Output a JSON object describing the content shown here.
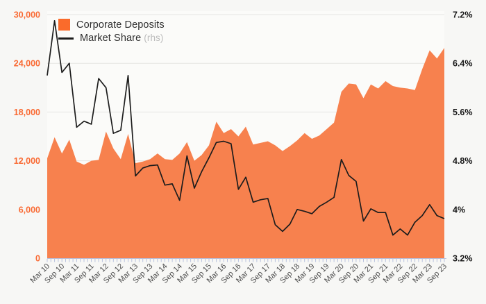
{
  "legend": {
    "items": [
      {
        "label": "Corporate Deposits",
        "marker": "square",
        "color": "#fa6b2b",
        "suffix": ""
      },
      {
        "label": "Market Share",
        "marker": "line",
        "color": "#1c1c1c",
        "suffix": "(rhs)"
      }
    ]
  },
  "chart_data": {
    "type": "area",
    "title": "",
    "subtitle": "",
    "grid": "horizontal",
    "legend_position": "top-left",
    "background": "#f7f7f5",
    "plot_background": "#fbfbf9",
    "gridline_color": "#e6e6e3",
    "axis_line_color": "#b8c1dd",
    "x_label_color": "#4d4d4d",
    "categories": [
      "Mar 10",
      "Jun 10",
      "Sep 10",
      "Dec 10",
      "Mar 11",
      "Jun 11",
      "Sep 11",
      "Dec 11",
      "Mar 12",
      "Jun 12",
      "Sep 12",
      "Dec 12",
      "Mar 13",
      "Jun 13",
      "Sep 13",
      "Dec 13",
      "Mar 14",
      "Jun 14",
      "Sep 14",
      "Dec 14",
      "Mar 15",
      "Jun 15",
      "Sep 15",
      "Dec 15",
      "Mar 16",
      "Jun 16",
      "Sep 16",
      "Dec 16",
      "Mar 17",
      "Jun 17",
      "Sep 17",
      "Dec 17",
      "Mar 18",
      "Jun 18",
      "Sep 18",
      "Dec 18",
      "Mar 19",
      "Jun 19",
      "Sep 19",
      "Dec 19",
      "Mar 20",
      "Jun 20",
      "Sep 20",
      "Dec 20",
      "Mar 21",
      "Jun 21",
      "Sep 21",
      "Dec 21",
      "Mar 22",
      "Jun 22",
      "Sep 22",
      "Dec 22",
      "Mar 23",
      "Jun 23",
      "Sep 23"
    ],
    "series": [
      {
        "name": "Corporate Deposits",
        "type": "area",
        "y_axis": "left",
        "color": "#f7814e",
        "values": [
          12300,
          14900,
          12900,
          14600,
          11900,
          11500,
          12000,
          12100,
          15600,
          13500,
          12200,
          15300,
          11700,
          11900,
          12200,
          12900,
          12200,
          12100,
          12900,
          14300,
          12000,
          12700,
          13900,
          16800,
          15400,
          15900,
          15000,
          16200,
          14000,
          14200,
          14400,
          13900,
          13200,
          13800,
          14500,
          15400,
          14700,
          15100,
          15900,
          16700,
          20500,
          21500,
          21400,
          19700,
          21400,
          20900,
          21800,
          21200,
          21000,
          20900,
          20700,
          23300,
          25600,
          24600,
          25900
        ]
      },
      {
        "name": "Market Share",
        "type": "line",
        "y_axis": "right",
        "color": "#1c1c1c",
        "values": [
          6.2,
          7.1,
          6.25,
          6.4,
          5.35,
          5.45,
          5.4,
          6.15,
          6.0,
          5.25,
          5.3,
          6.2,
          4.55,
          4.68,
          4.72,
          4.73,
          4.4,
          4.42,
          4.15,
          4.88,
          4.35,
          4.62,
          4.85,
          5.1,
          5.12,
          5.08,
          4.33,
          4.53,
          4.12,
          4.16,
          4.18,
          3.75,
          3.64,
          3.76,
          4.0,
          3.97,
          3.93,
          4.05,
          4.12,
          4.2,
          4.82,
          4.56,
          4.46,
          3.81,
          4.01,
          3.95,
          3.95,
          3.58,
          3.68,
          3.58,
          3.79,
          3.9,
          4.08,
          3.9,
          3.85
        ]
      }
    ],
    "left_axis": {
      "min": 0,
      "max": 30000,
      "tick_labels": [
        "0",
        "6,000",
        "12,000",
        "18,000",
        "24,000",
        "30,000"
      ],
      "label_color": "#f96a33"
    },
    "right_axis": {
      "min": 3.2,
      "max": 7.2,
      "tick_labels": [
        "3.2%",
        "4%",
        "4.8%",
        "5.6%",
        "6.4%",
        "7.2%"
      ],
      "label_color": "#1a1a1a"
    },
    "x_axis": {
      "tick_labels": [
        "Mar 10",
        "Sep 10",
        "Mar 11",
        "Sep 11",
        "Mar 12",
        "Sep 12",
        "Mar 13",
        "Sep 13",
        "Mar 14",
        "Sep 14",
        "Mar 15",
        "Sep 15",
        "Mar 16",
        "Sep 16",
        "Mar 17",
        "Sep 17",
        "Mar 18",
        "Sep 18",
        "Mar 19",
        "Sep 19",
        "Mar 20",
        "Sep 20",
        "Mar 21",
        "Sep 21",
        "Mar 22",
        "Sep 22",
        "Mar 23",
        "Sep 23"
      ],
      "label_every_n_points": 2
    }
  }
}
